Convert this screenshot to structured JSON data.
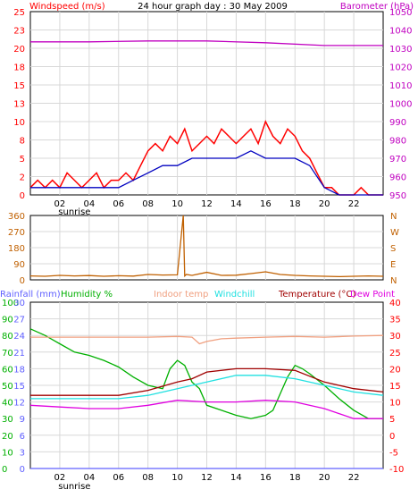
{
  "header": {
    "title": "24 hour graph day : 30 May 2009",
    "left_label": "Windspeed (m/s)",
    "right_label": "Barometer (hPa)"
  },
  "colors": {
    "frame": "#000000",
    "grid": "#d8d8d8",
    "wind": "#ff0000",
    "wind_avg": "#0000c0",
    "barometer": "#c000c0",
    "direction": "#c06000",
    "rainfall": "#6060ff",
    "humidity": "#00b000",
    "indoor": "#f0a080",
    "windchill": "#20e0e0",
    "temperature": "#a00000",
    "dewpoint": "#e000e0",
    "labels_left": "#ff0000",
    "labels_right": "#c000c0"
  },
  "x_ticks": [
    "02",
    "04",
    "06",
    "08",
    "10",
    "12",
    "14",
    "16",
    "18",
    "20",
    "22"
  ],
  "sunrise_label": "sunrise",
  "chart_data": [
    {
      "type": "line",
      "title": "24 hour graph day : 30 May 2009",
      "ylabel": "Windspeed (m/s)",
      "y2label": "Barometer (hPa)",
      "xlim": [
        0,
        24
      ],
      "ylim": [
        0,
        25
      ],
      "y2lim": [
        950,
        1050
      ],
      "y_ticks": [
        "0",
        "2",
        "5",
        "8",
        "10",
        "13",
        "15",
        "18",
        "20",
        "23",
        "25"
      ],
      "y2_ticks": [
        "950",
        "960",
        "970",
        "980",
        "990",
        "1000",
        "1010",
        "1020",
        "1030",
        "1040",
        "1050"
      ],
      "series": [
        {
          "name": "Windspeed (m/s)",
          "axis": "left",
          "x": [
            0,
            0.5,
            1,
            1.5,
            2,
            2.5,
            3,
            3.5,
            4,
            4.5,
            5,
            5.5,
            6,
            6.5,
            7,
            7.5,
            8,
            8.5,
            9,
            9.5,
            10,
            10.5,
            11,
            11.5,
            12,
            12.5,
            13,
            13.5,
            14,
            14.5,
            15,
            15.5,
            16,
            16.5,
            17,
            17.5,
            18,
            18.5,
            19,
            19.5,
            20,
            20.5,
            21,
            21.5,
            22,
            22.5,
            23,
            23.5,
            24
          ],
          "y": [
            1,
            2,
            1,
            2,
            1,
            3,
            2,
            1,
            2,
            3,
            1,
            2,
            2,
            3,
            2,
            4,
            6,
            7,
            6,
            8,
            7,
            9,
            6,
            7,
            8,
            7,
            9,
            8,
            7,
            8,
            9,
            7,
            10,
            8,
            7,
            9,
            8,
            6,
            5,
            3,
            1,
            1,
            0,
            0,
            0,
            1,
            0,
            0,
            0
          ]
        },
        {
          "name": "Wind average",
          "axis": "left",
          "x": [
            0,
            1,
            2,
            3,
            4,
            5,
            6,
            7,
            8,
            9,
            10,
            11,
            12,
            13,
            14,
            15,
            16,
            17,
            18,
            19,
            20,
            21,
            22,
            23,
            24
          ],
          "y": [
            1,
            1,
            1,
            1,
            1,
            1,
            1,
            2,
            3,
            4,
            4,
            5,
            5,
            5,
            5,
            6,
            5,
            5,
            5,
            4,
            1,
            0,
            0,
            0,
            0
          ]
        },
        {
          "name": "Barometer (hPa)",
          "axis": "right",
          "x": [
            0,
            4,
            8,
            12,
            16,
            20,
            24
          ],
          "y": [
            1033.5,
            1033.5,
            1034,
            1034,
            1033,
            1031.5,
            1031.5
          ]
        }
      ]
    },
    {
      "type": "line",
      "title": "",
      "ylabel": "",
      "xlim": [
        0,
        24
      ],
      "ylim": [
        0,
        360
      ],
      "y_ticks": [
        "0",
        "90",
        "180",
        "270",
        "360"
      ],
      "y2_ticks": [
        "N",
        "E",
        "S",
        "W",
        "N"
      ],
      "series": [
        {
          "name": "Wind direction",
          "axis": "left",
          "x": [
            0,
            1,
            2,
            3,
            4,
            5,
            6,
            7,
            8,
            9,
            10,
            10.4,
            10.5,
            10.6,
            11,
            12,
            13,
            14,
            15,
            16,
            17,
            18,
            19,
            20,
            21,
            22,
            23,
            24
          ],
          "y": [
            22,
            20,
            25,
            22,
            24,
            20,
            23,
            21,
            30,
            27,
            28,
            360,
            22,
            30,
            25,
            42,
            25,
            26,
            35,
            45,
            30,
            25,
            22,
            20,
            18,
            20,
            22,
            20
          ]
        }
      ]
    },
    {
      "type": "line",
      "title": "",
      "xlim": [
        0,
        24
      ],
      "ylim": [
        0,
        30
      ],
      "y2lim": [
        -10,
        40
      ],
      "legend": [
        "Rainfall (mm)",
        "Humidity %",
        "Indoor temp",
        "Windchill",
        "Temperature (°C)",
        "Dew Point"
      ],
      "y_ticks": [
        "0",
        "3",
        "6",
        "9",
        "12",
        "15",
        "18",
        "21",
        "24",
        "27",
        "30"
      ],
      "y_ticks_humidity": [
        "0",
        "10",
        "20",
        "30",
        "40",
        "50",
        "60",
        "70",
        "80",
        "90",
        "100"
      ],
      "y2_ticks": [
        "-10",
        "-5",
        "0",
        "5",
        "10",
        "15",
        "20",
        "25",
        "30",
        "35",
        "40"
      ],
      "series": [
        {
          "name": "Rainfall (mm)",
          "axis": "rain",
          "x": [
            0,
            24
          ],
          "y": [
            0,
            0
          ]
        },
        {
          "name": "Humidity %",
          "axis": "humidity",
          "x": [
            0,
            1,
            2,
            3,
            4,
            5,
            6,
            7,
            8,
            9,
            9.5,
            10,
            10.5,
            11,
            11.5,
            12,
            13,
            14,
            15,
            16,
            16.5,
            17,
            17.5,
            18,
            18.5,
            19,
            20,
            21,
            22,
            23,
            24
          ],
          "y": [
            84,
            80,
            75,
            70,
            68,
            65,
            61,
            55,
            50,
            48,
            60,
            65,
            62,
            52,
            48,
            38,
            35,
            32,
            30,
            32,
            35,
            45,
            55,
            62,
            60,
            57,
            50,
            42,
            35,
            30,
            30
          ]
        },
        {
          "name": "Indoor temp",
          "axis": "right",
          "x": [
            0,
            2,
            4,
            6,
            8,
            10,
            11,
            11.5,
            12,
            13,
            14,
            16,
            18,
            20,
            22,
            24
          ],
          "y": [
            29.5,
            29.5,
            29.5,
            29.5,
            29.5,
            29.7,
            29.5,
            27.5,
            28.2,
            29,
            29.2,
            29.5,
            29.7,
            29.5,
            29.8,
            30
          ]
        },
        {
          "name": "Windchill",
          "axis": "right",
          "x": [
            0,
            2,
            4,
            6,
            8,
            10,
            11,
            12,
            14,
            16,
            18,
            20,
            22,
            24
          ],
          "y": [
            11,
            11,
            11,
            11,
            12,
            14,
            15,
            16,
            18,
            18,
            17,
            15,
            13,
            12
          ]
        },
        {
          "name": "Temperature (°C)",
          "axis": "right",
          "x": [
            0,
            2,
            4,
            6,
            8,
            10,
            11,
            12,
            14,
            16,
            18,
            20,
            22,
            24
          ],
          "y": [
            12,
            12,
            12,
            12,
            13.5,
            16,
            17,
            19,
            20,
            20,
            19.5,
            16,
            14,
            13
          ]
        },
        {
          "name": "Dew Point",
          "axis": "right",
          "x": [
            0,
            2,
            4,
            6,
            8,
            10,
            12,
            14,
            16,
            18,
            20,
            22,
            24
          ],
          "y": [
            9,
            8.5,
            8,
            8,
            9,
            10.5,
            10,
            10,
            10.5,
            10,
            8,
            5,
            5
          ]
        }
      ]
    }
  ]
}
